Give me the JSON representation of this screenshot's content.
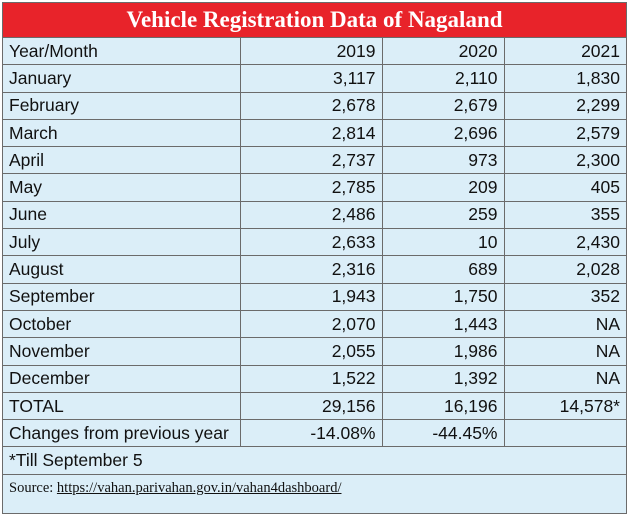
{
  "title": "Vehicle Registration Data of Nagaland",
  "table": {
    "header": [
      "Year/Month",
      "2019",
      "2020",
      "2021"
    ],
    "rows": [
      [
        "January",
        "3,117",
        "2,110",
        "1,830"
      ],
      [
        "February",
        "2,678",
        "2,679",
        "2,299"
      ],
      [
        "March",
        "2,814",
        "2,696",
        "2,579"
      ],
      [
        "April",
        "2,737",
        "973",
        "2,300"
      ],
      [
        "May",
        "2,785",
        "209",
        "405"
      ],
      [
        "June",
        "2,486",
        "259",
        "355"
      ],
      [
        "July",
        "2,633",
        "10",
        "2,430"
      ],
      [
        "August",
        "2,316",
        "689",
        "2,028"
      ],
      [
        "September",
        "1,943",
        "1,750",
        "352"
      ],
      [
        "October",
        "2,070",
        "1,443",
        "NA"
      ],
      [
        "November",
        "2,055",
        "1,986",
        "NA"
      ],
      [
        "December",
        "1,522",
        "1,392",
        "NA"
      ],
      [
        "TOTAL",
        "29,156",
        "16,196",
        "14,578*"
      ],
      [
        "Changes from previous year",
        "-14.08%",
        "-44.45%",
        ""
      ]
    ]
  },
  "footnote": "*Till September 5",
  "source": {
    "label": "Source:",
    "url": "https://vahan.parivahan.gov.in/vahan4dashboard/"
  }
}
